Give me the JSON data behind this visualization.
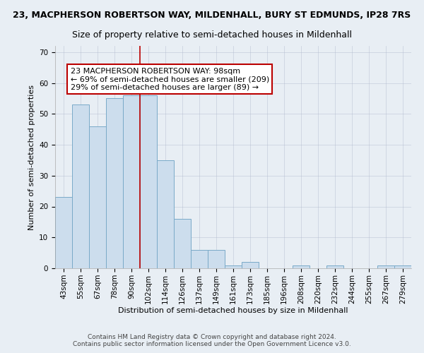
{
  "title_line1": "23, MACPHERSON ROBERTSON WAY, MILDENHALL, BURY ST EDMUNDS, IP28 7RS",
  "title_line2": "Size of property relative to semi-detached houses in Mildenhall",
  "xlabel": "Distribution of semi-detached houses by size in Mildenhall",
  "ylabel": "Number of semi-detached properties",
  "bin_labels": [
    "43sqm",
    "55sqm",
    "67sqm",
    "78sqm",
    "90sqm",
    "102sqm",
    "114sqm",
    "126sqm",
    "137sqm",
    "149sqm",
    "161sqm",
    "173sqm",
    "185sqm",
    "196sqm",
    "208sqm",
    "220sqm",
    "232sqm",
    "244sqm",
    "255sqm",
    "267sqm",
    "279sqm"
  ],
  "bar_heights": [
    23,
    53,
    46,
    55,
    56,
    56,
    35,
    16,
    6,
    6,
    1,
    2,
    0,
    0,
    1,
    0,
    1,
    0,
    0,
    1,
    1
  ],
  "bar_color": "#ccdded",
  "bar_edge_color": "#7aaac8",
  "annotation_line1": "23 MACPHERSON ROBERTSON WAY: 98sqm",
  "annotation_line2": "← 69% of semi-detached houses are smaller (209)",
  "annotation_line3": "29% of semi-detached houses are larger (89) →",
  "annotation_box_color": "#ffffff",
  "annotation_box_edge_color": "#bb0000",
  "vline_color": "#bb0000",
  "vline_x": 4.5,
  "footer_line1": "Contains HM Land Registry data © Crown copyright and database right 2024.",
  "footer_line2": "Contains public sector information licensed under the Open Government Licence v3.0.",
  "ylim": [
    0,
    72
  ],
  "background_color": "#e8eef4",
  "plot_background_color": "#e8eef4",
  "title_fontsize": 9,
  "subtitle_fontsize": 9,
  "axis_label_fontsize": 8,
  "tick_fontsize": 7.5,
  "annotation_fontsize": 8,
  "footer_fontsize": 6.5
}
